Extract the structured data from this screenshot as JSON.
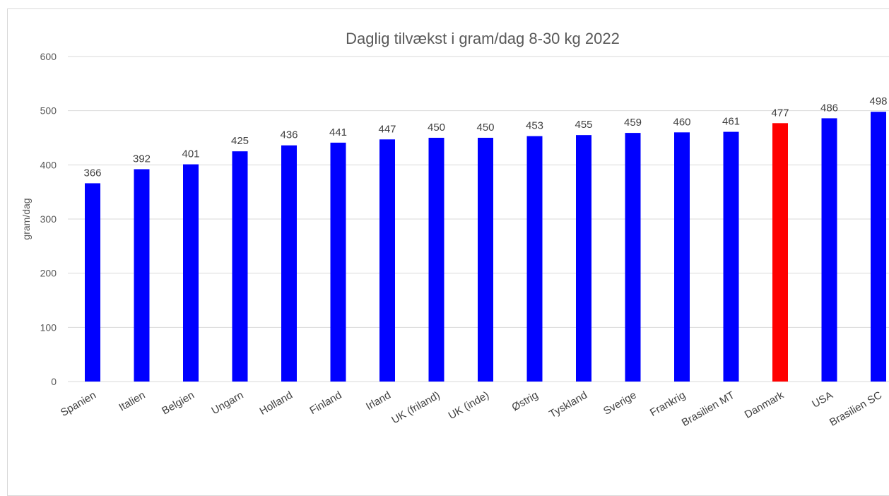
{
  "chart_data": {
    "type": "bar",
    "title": "Daglig tilvækst i gram/dag 8-30 kg 2022",
    "xlabel": "",
    "ylabel": "gram/dag",
    "ylim": [
      0,
      600
    ],
    "yticks": [
      0,
      100,
      200,
      300,
      400,
      500,
      600
    ],
    "grid": true,
    "legend": "none",
    "categories": [
      "Spanien",
      "Italien",
      "Belgien",
      "Ungarn",
      "Holland",
      "Finland",
      "Irland",
      "UK (friland)",
      "UK (inde)",
      "Østrig",
      "Tyskland",
      "Sverige",
      "Frankrig",
      "Brasilien MT",
      "Danmark",
      "USA",
      "Brasilien SC"
    ],
    "values": [
      366,
      392,
      401,
      425,
      436,
      441,
      447,
      450,
      450,
      453,
      455,
      459,
      460,
      461,
      477,
      486,
      498
    ],
    "colors": [
      "#0000ff",
      "#0000ff",
      "#0000ff",
      "#0000ff",
      "#0000ff",
      "#0000ff",
      "#0000ff",
      "#0000ff",
      "#0000ff",
      "#0000ff",
      "#0000ff",
      "#0000ff",
      "#0000ff",
      "#0000ff",
      "#ff0000",
      "#0000ff",
      "#0000ff"
    ],
    "gridline_color": "#d9d9d9"
  }
}
